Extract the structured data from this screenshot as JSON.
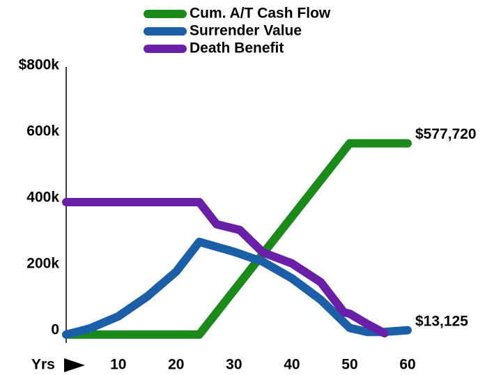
{
  "chart_data": {
    "type": "line",
    "series": [
      {
        "name": "Cum. A/T Cash Flow",
        "color": "#1a8a1a",
        "x": [
          1,
          24,
          50,
          60
        ],
        "values": [
          0,
          0,
          577720,
          577720
        ]
      },
      {
        "name": "Surrender Value",
        "color": "#1a5fa8",
        "x": [
          1,
          5,
          10,
          15,
          20,
          24,
          30,
          35,
          40,
          45,
          50,
          53,
          56,
          60
        ],
        "values": [
          0,
          18000,
          55000,
          115000,
          190000,
          280000,
          250000,
          220000,
          170000,
          105000,
          20000,
          8000,
          8000,
          13125
        ]
      },
      {
        "name": "Death Benefit",
        "color": "#6a1fa8",
        "x": [
          1,
          24,
          27,
          31,
          35,
          40,
          45,
          49,
          50,
          53,
          56
        ],
        "values": [
          400000,
          400000,
          333000,
          316000,
          248000,
          215000,
          158000,
          67000,
          63000,
          32000,
          4000
        ]
      }
    ],
    "xlim": [
      1,
      60
    ],
    "xticks": [
      10,
      20,
      30,
      40,
      50,
      60
    ],
    "xlabel": "Yrs",
    "ylim": [
      0,
      800000
    ],
    "yticks": [
      0,
      {
        "value": 200000,
        "label": "200k"
      },
      {
        "value": 400000,
        "label": "400k"
      },
      {
        "value": 600000,
        "label": "600k"
      },
      {
        "value": 800000,
        "label": "$800k"
      }
    ],
    "annotations": [
      {
        "text": "$577,720",
        "value": 577720
      },
      {
        "text": "$13,125",
        "value": 13125
      }
    ],
    "legend": "top"
  }
}
